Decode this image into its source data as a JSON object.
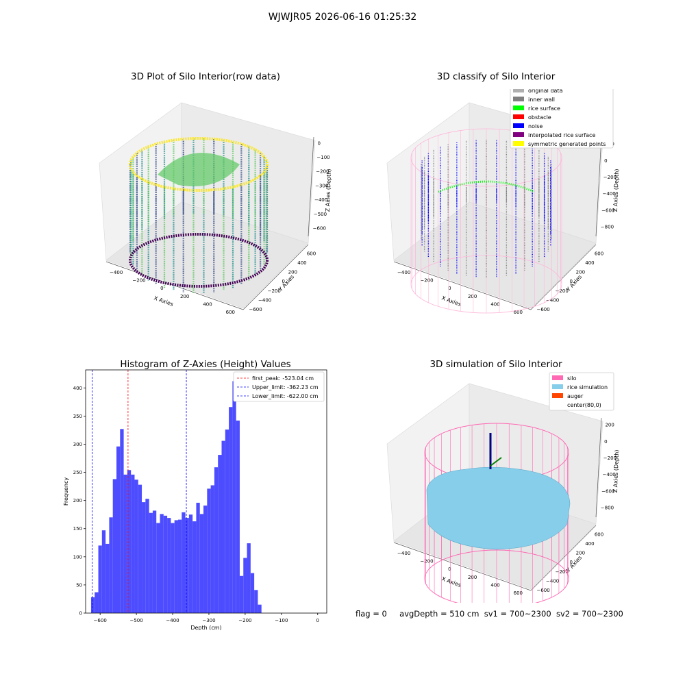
{
  "figure": {
    "suptitle": "WJWJR05 2026-06-16 01:25:32",
    "footer": {
      "flag": "flag = 0",
      "avg_depth": "avgDepth = 510 cm",
      "sv1": "sv1 = 700~2300",
      "sv2": "sv2 = 700~2300"
    }
  },
  "colors": {
    "hist_bar": "#4d4dff",
    "first_peak_line": "#ff0000",
    "limit_line": "#0000ff",
    "silo": "#ff69b4",
    "rice_simulation": "#87ceeb",
    "auger": "#ff4500",
    "original_data": "#b0b0b0",
    "inner_wall": "#808080",
    "rice_surface": "#00ff00",
    "obstacle": "#ff0000",
    "noise": "#0000ff",
    "interpolated_rice_surface": "#800080",
    "symmetric_generated_points": "#ffff00"
  },
  "chart_data": [
    {
      "type": "scatter",
      "subtype": "3d",
      "title": "3D Plot of Silo Interior(row data)",
      "xlabel": "X Axies",
      "ylabel": "Y Axies",
      "zlabel": "Z Axies (Depth)",
      "xticks": [
        "−400",
        "−200",
        "0",
        "200",
        "400",
        "600"
      ],
      "yticks": [
        "−600",
        "−400",
        "−200",
        "0",
        "200",
        "400",
        "600"
      ],
      "zticks": [
        "0",
        "−100",
        "−200",
        "−300",
        "−400",
        "−500",
        "−600"
      ],
      "colormap": "viridis",
      "grid": true
    },
    {
      "type": "scatter",
      "subtype": "3d",
      "title": "3D classify of Silo Interior",
      "xlabel": "X Axies",
      "ylabel": "Y Axies",
      "zlabel": "Z Axies (Depth)",
      "xticks": [
        "−400",
        "−200",
        "0",
        "200",
        "400",
        "600"
      ],
      "yticks": [
        "−600",
        "−400",
        "−200",
        "0",
        "200",
        "400",
        "600"
      ],
      "zticks": [
        "200",
        "0",
        "−200",
        "−400",
        "−600",
        "−800"
      ],
      "legend_position": "top-right",
      "legend": [
        {
          "label": "original data",
          "color": "#b0b0b0"
        },
        {
          "label": "inner wall",
          "color": "#808080"
        },
        {
          "label": "rice surface",
          "color": "#00ff00"
        },
        {
          "label": "obstacle",
          "color": "#ff0000"
        },
        {
          "label": "noise",
          "color": "#0000ff"
        },
        {
          "label": "interpolated rice surface",
          "color": "#800080"
        },
        {
          "label": "symmetric generated points",
          "color": "#ffff00"
        }
      ],
      "grid": true
    },
    {
      "type": "bar",
      "subtype": "histogram",
      "title": "Histogram of Z-Axies (Height) Values",
      "xlabel": "Depth (cm)",
      "ylabel": "Frequency",
      "xlim": [
        -640,
        25
      ],
      "ylim": [
        0,
        432
      ],
      "bin_width": 10,
      "bin_start": -625,
      "values": [
        28,
        37,
        120,
        147,
        123,
        170,
        238,
        296,
        327,
        246,
        254,
        246,
        237,
        228,
        197,
        203,
        178,
        182,
        160,
        176,
        173,
        169,
        160,
        165,
        166,
        179,
        169,
        175,
        163,
        196,
        176,
        191,
        221,
        227,
        259,
        281,
        306,
        326,
        366,
        412,
        342,
        66,
        98,
        124,
        71,
        41,
        15
      ],
      "xticks": [
        -600,
        -500,
        -400,
        -300,
        -200,
        -100,
        0
      ],
      "xtick_labels": [
        "−600",
        "−500",
        "−400",
        "−300",
        "−200",
        "−100",
        "0"
      ],
      "yticks": [
        0,
        50,
        100,
        150,
        200,
        250,
        300,
        350,
        400
      ],
      "vlines": [
        {
          "label": "first_peak: -523.04 cm",
          "x": -523.04,
          "color": "#ff0000"
        },
        {
          "label": "Upper_limit: -362.23 cm",
          "x": -362.23,
          "color": "#0000ff"
        },
        {
          "label": "Lower_limit: -622.00 cm",
          "x": -622.0,
          "color": "#0000ff"
        }
      ],
      "legend_position": "top-right",
      "grid": false
    },
    {
      "type": "area",
      "subtype": "3d-surface",
      "title": "3D simulation of Silo Interior",
      "xlabel": "X Axies",
      "ylabel": "Y Axies",
      "zlabel": "Z Axies (Depth)",
      "xticks": [
        "−400",
        "−200",
        "0",
        "200",
        "400",
        "600"
      ],
      "yticks": [
        "−600",
        "−400",
        "−200",
        "0",
        "200",
        "400",
        "600"
      ],
      "zticks": [
        "200",
        "0",
        "−200",
        "−400",
        "−600",
        "−800"
      ],
      "legend_position": "top-right",
      "legend": [
        {
          "label": "silo",
          "color": "#ff69b4"
        },
        {
          "label": "rice simulation",
          "color": "#87ceeb"
        },
        {
          "label": "auger",
          "color": "#ff4500"
        },
        {
          "label": "center(80,0)",
          "color": ""
        }
      ],
      "grid": true
    }
  ]
}
